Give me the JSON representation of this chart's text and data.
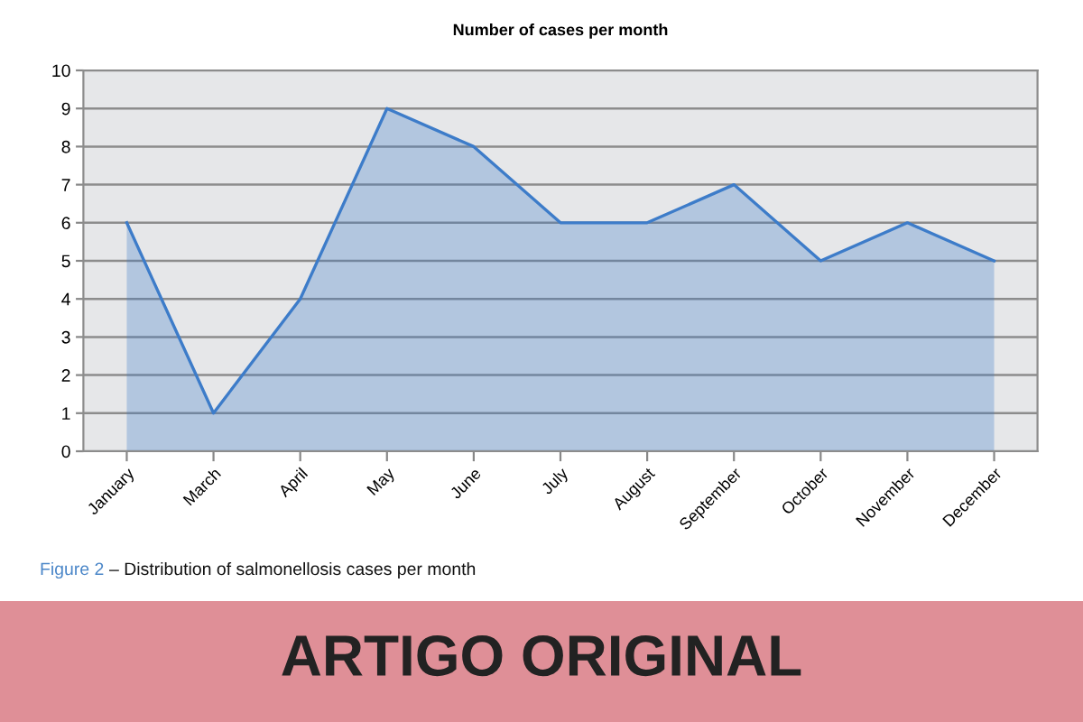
{
  "chart_data": {
    "type": "area",
    "title": "Number of cases per month",
    "categories": [
      "January",
      "March",
      "April",
      "May",
      "June",
      "July",
      "August",
      "September",
      "October",
      "November",
      "December"
    ],
    "series": [
      {
        "color": "#3d7cc9",
        "values": [
          6,
          1,
          4,
          9,
          8,
          6,
          6,
          7,
          5,
          6,
          5
        ]
      }
    ],
    "ylim": [
      0,
      10
    ],
    "yticks": [
      0,
      1,
      2,
      3,
      4,
      5,
      6,
      7,
      8,
      9,
      10
    ],
    "grid": "y",
    "annotations": [
      "Figure 2",
      "– Distribution of salmonellosis cases per month",
      "ARTIGO ORIGINAL"
    ]
  }
}
